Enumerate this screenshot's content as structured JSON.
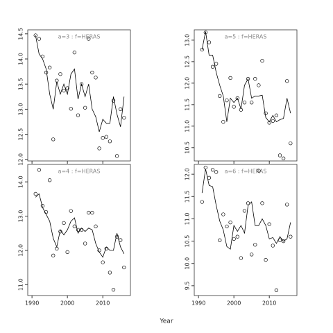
{
  "xlabel": "Year",
  "chart_data": [
    {
      "type": "line",
      "title": "a=3  :  f=HERAS",
      "x": [
        1991,
        1992,
        1993,
        1994,
        1995,
        1996,
        1997,
        1998,
        1999,
        2000,
        2001,
        2002,
        2003,
        2004,
        2005,
        2006,
        2007,
        2008,
        2009,
        2010,
        2011,
        2012,
        2013,
        2014,
        2015,
        2016
      ],
      "series": [
        {
          "style": "points",
          "color": "#000000",
          "values": [
            14.47,
            14.4,
            14.05,
            13.73,
            13.83,
            12.4,
            13.57,
            13.7,
            13.37,
            13.42,
            13.01,
            14.13,
            12.88,
            13.5,
            13.03,
            14.4,
            13.73,
            13.63,
            12.22,
            12.43,
            12.45,
            12.36,
            13.17,
            12.07,
            13.0,
            12.83
          ]
        },
        {
          "style": "line",
          "color": "#000000",
          "values": [
            14.47,
            14.1,
            14.0,
            13.8,
            13.3,
            13.0,
            13.55,
            13.3,
            13.5,
            13.3,
            13.7,
            13.8,
            13.2,
            13.5,
            13.25,
            13.5,
            13.0,
            12.85,
            12.55,
            12.8,
            12.72,
            12.72,
            13.25,
            12.9,
            12.65,
            13.25
          ]
        }
      ],
      "xlim": [
        1988.8,
        2017.8
      ],
      "xticks": [
        1990,
        2000,
        2010
      ],
      "xtick_labels": false,
      "ylim": [
        11.97,
        14.58
      ],
      "yticks": [
        {
          "value": 12,
          "label": "12.0"
        },
        12.5,
        {
          "value": 13,
          "label": "13.0"
        },
        13.5,
        {
          "value": 14,
          "label": "14.0"
        },
        14.5
      ]
    },
    {
      "type": "line",
      "title": "a=5  :  f=HERAS",
      "x": [
        1991,
        1992,
        1993,
        1994,
        1995,
        1996,
        1997,
        1998,
        1999,
        2000,
        2001,
        2002,
        2003,
        2004,
        2005,
        2006,
        2007,
        2008,
        2009,
        2010,
        2011,
        2012,
        2013,
        2014,
        2015,
        2016
      ],
      "series": [
        {
          "style": "points",
          "color": "#000000",
          "values": [
            12.78,
            13.18,
            12.95,
            12.38,
            12.45,
            11.7,
            11.1,
            11.6,
            12.12,
            11.45,
            11.65,
            11.38,
            11.55,
            12.1,
            11.55,
            12.1,
            11.95,
            12.52,
            11.3,
            11.08,
            11.12,
            11.25,
            10.32,
            10.25,
            12.05,
            10.6
          ]
        },
        {
          "style": "line",
          "color": "#000000",
          "values": [
            12.78,
            13.2,
            12.65,
            12.65,
            12.25,
            11.95,
            11.7,
            11.1,
            11.65,
            11.55,
            11.65,
            11.4,
            11.95,
            12.1,
            11.65,
            11.7,
            11.7,
            11.72,
            11.2,
            11.1,
            11.25,
            11.1,
            11.15,
            11.18,
            11.65,
            11.3
          ]
        }
      ],
      "xlim": [
        1988.8,
        2017.8
      ],
      "xticks": [
        1990,
        2000,
        2010
      ],
      "xtick_labels": false,
      "ylim": [
        10.19,
        13.24
      ],
      "yticks": [
        10.5,
        {
          "value": 11,
          "label": "11.0"
        },
        11.5,
        {
          "value": 12,
          "label": "12.0"
        },
        12.5,
        {
          "value": 13,
          "label": "13.0"
        }
      ]
    },
    {
      "type": "line",
      "title": "a=4  :  f=HERAS",
      "x": [
        1991,
        1992,
        1993,
        1994,
        1995,
        1996,
        1997,
        1998,
        1999,
        2000,
        2001,
        2002,
        2003,
        2004,
        2005,
        2006,
        2007,
        2008,
        2009,
        2010,
        2011,
        2012,
        2013,
        2014,
        2015,
        2016
      ],
      "series": [
        {
          "style": "points",
          "color": "#000000",
          "values": [
            13.65,
            14.35,
            13.3,
            13.12,
            14.05,
            11.85,
            12.05,
            12.55,
            12.8,
            11.95,
            13.15,
            12.7,
            12.6,
            12.6,
            12.2,
            13.1,
            13.1,
            12.7,
            12.0,
            11.65,
            12.05,
            11.35,
            10.85,
            12.4,
            12.3,
            11.5
          ]
        },
        {
          "style": "line",
          "color": "#000000",
          "values": [
            13.55,
            13.65,
            13.25,
            13.05,
            12.85,
            12.35,
            12.1,
            12.6,
            12.45,
            12.6,
            12.85,
            12.95,
            12.5,
            12.65,
            12.55,
            12.65,
            12.6,
            12.2,
            11.95,
            11.8,
            12.1,
            12.0,
            12.0,
            12.5,
            12.1,
            11.9
          ]
        }
      ],
      "xlim": [
        1988.8,
        2017.8
      ],
      "xticks": [
        1990,
        2000,
        2010
      ],
      "xtick_labels": true,
      "ylim": [
        10.68,
        14.51
      ],
      "yticks": [
        {
          "value": 11,
          "label": "11.0"
        },
        {
          "value": 12,
          "label": "12.0"
        },
        {
          "value": 13,
          "label": "13.0"
        },
        {
          "value": 14,
          "label": "14.0"
        }
      ]
    },
    {
      "type": "line",
      "title": "a=6  :  f=HERAS",
      "x": [
        1991,
        1992,
        1993,
        1994,
        1995,
        1996,
        1997,
        1998,
        1999,
        2000,
        2001,
        2002,
        2003,
        2004,
        2005,
        2006,
        2007,
        2008,
        2009,
        2010,
        2011,
        2012,
        2013,
        2014,
        2015,
        2016
      ],
      "series": [
        {
          "style": "points",
          "color": "#000000",
          "values": [
            11.38,
            12.15,
            11.92,
            12.1,
            12.05,
            10.52,
            11.1,
            10.83,
            10.92,
            10.55,
            10.6,
            10.12,
            11.18,
            11.35,
            10.2,
            10.42,
            12.08,
            11.35,
            10.08,
            10.88,
            10.4,
            9.4,
            10.52,
            10.5,
            11.32,
            10.6
          ]
        },
        {
          "style": "line",
          "color": "#000000",
          "values": [
            11.58,
            12.12,
            11.75,
            11.72,
            11.3,
            10.95,
            10.75,
            10.38,
            10.32,
            10.85,
            10.72,
            10.85,
            10.68,
            11.3,
            11.38,
            10.85,
            10.85,
            11.0,
            10.85,
            10.55,
            10.58,
            10.45,
            10.6,
            10.5,
            10.55,
            10.92
          ]
        }
      ],
      "xlim": [
        1988.8,
        2017.8
      ],
      "xticks": [
        1990,
        2000,
        2010
      ],
      "xtick_labels": true,
      "ylim": [
        9.28,
        12.22
      ],
      "yticks": [
        9.5,
        {
          "value": 10,
          "label": "10.0"
        },
        10.5,
        {
          "value": 11,
          "label": "11.0"
        },
        11.5,
        {
          "value": 12,
          "label": "12.0"
        }
      ]
    }
  ]
}
